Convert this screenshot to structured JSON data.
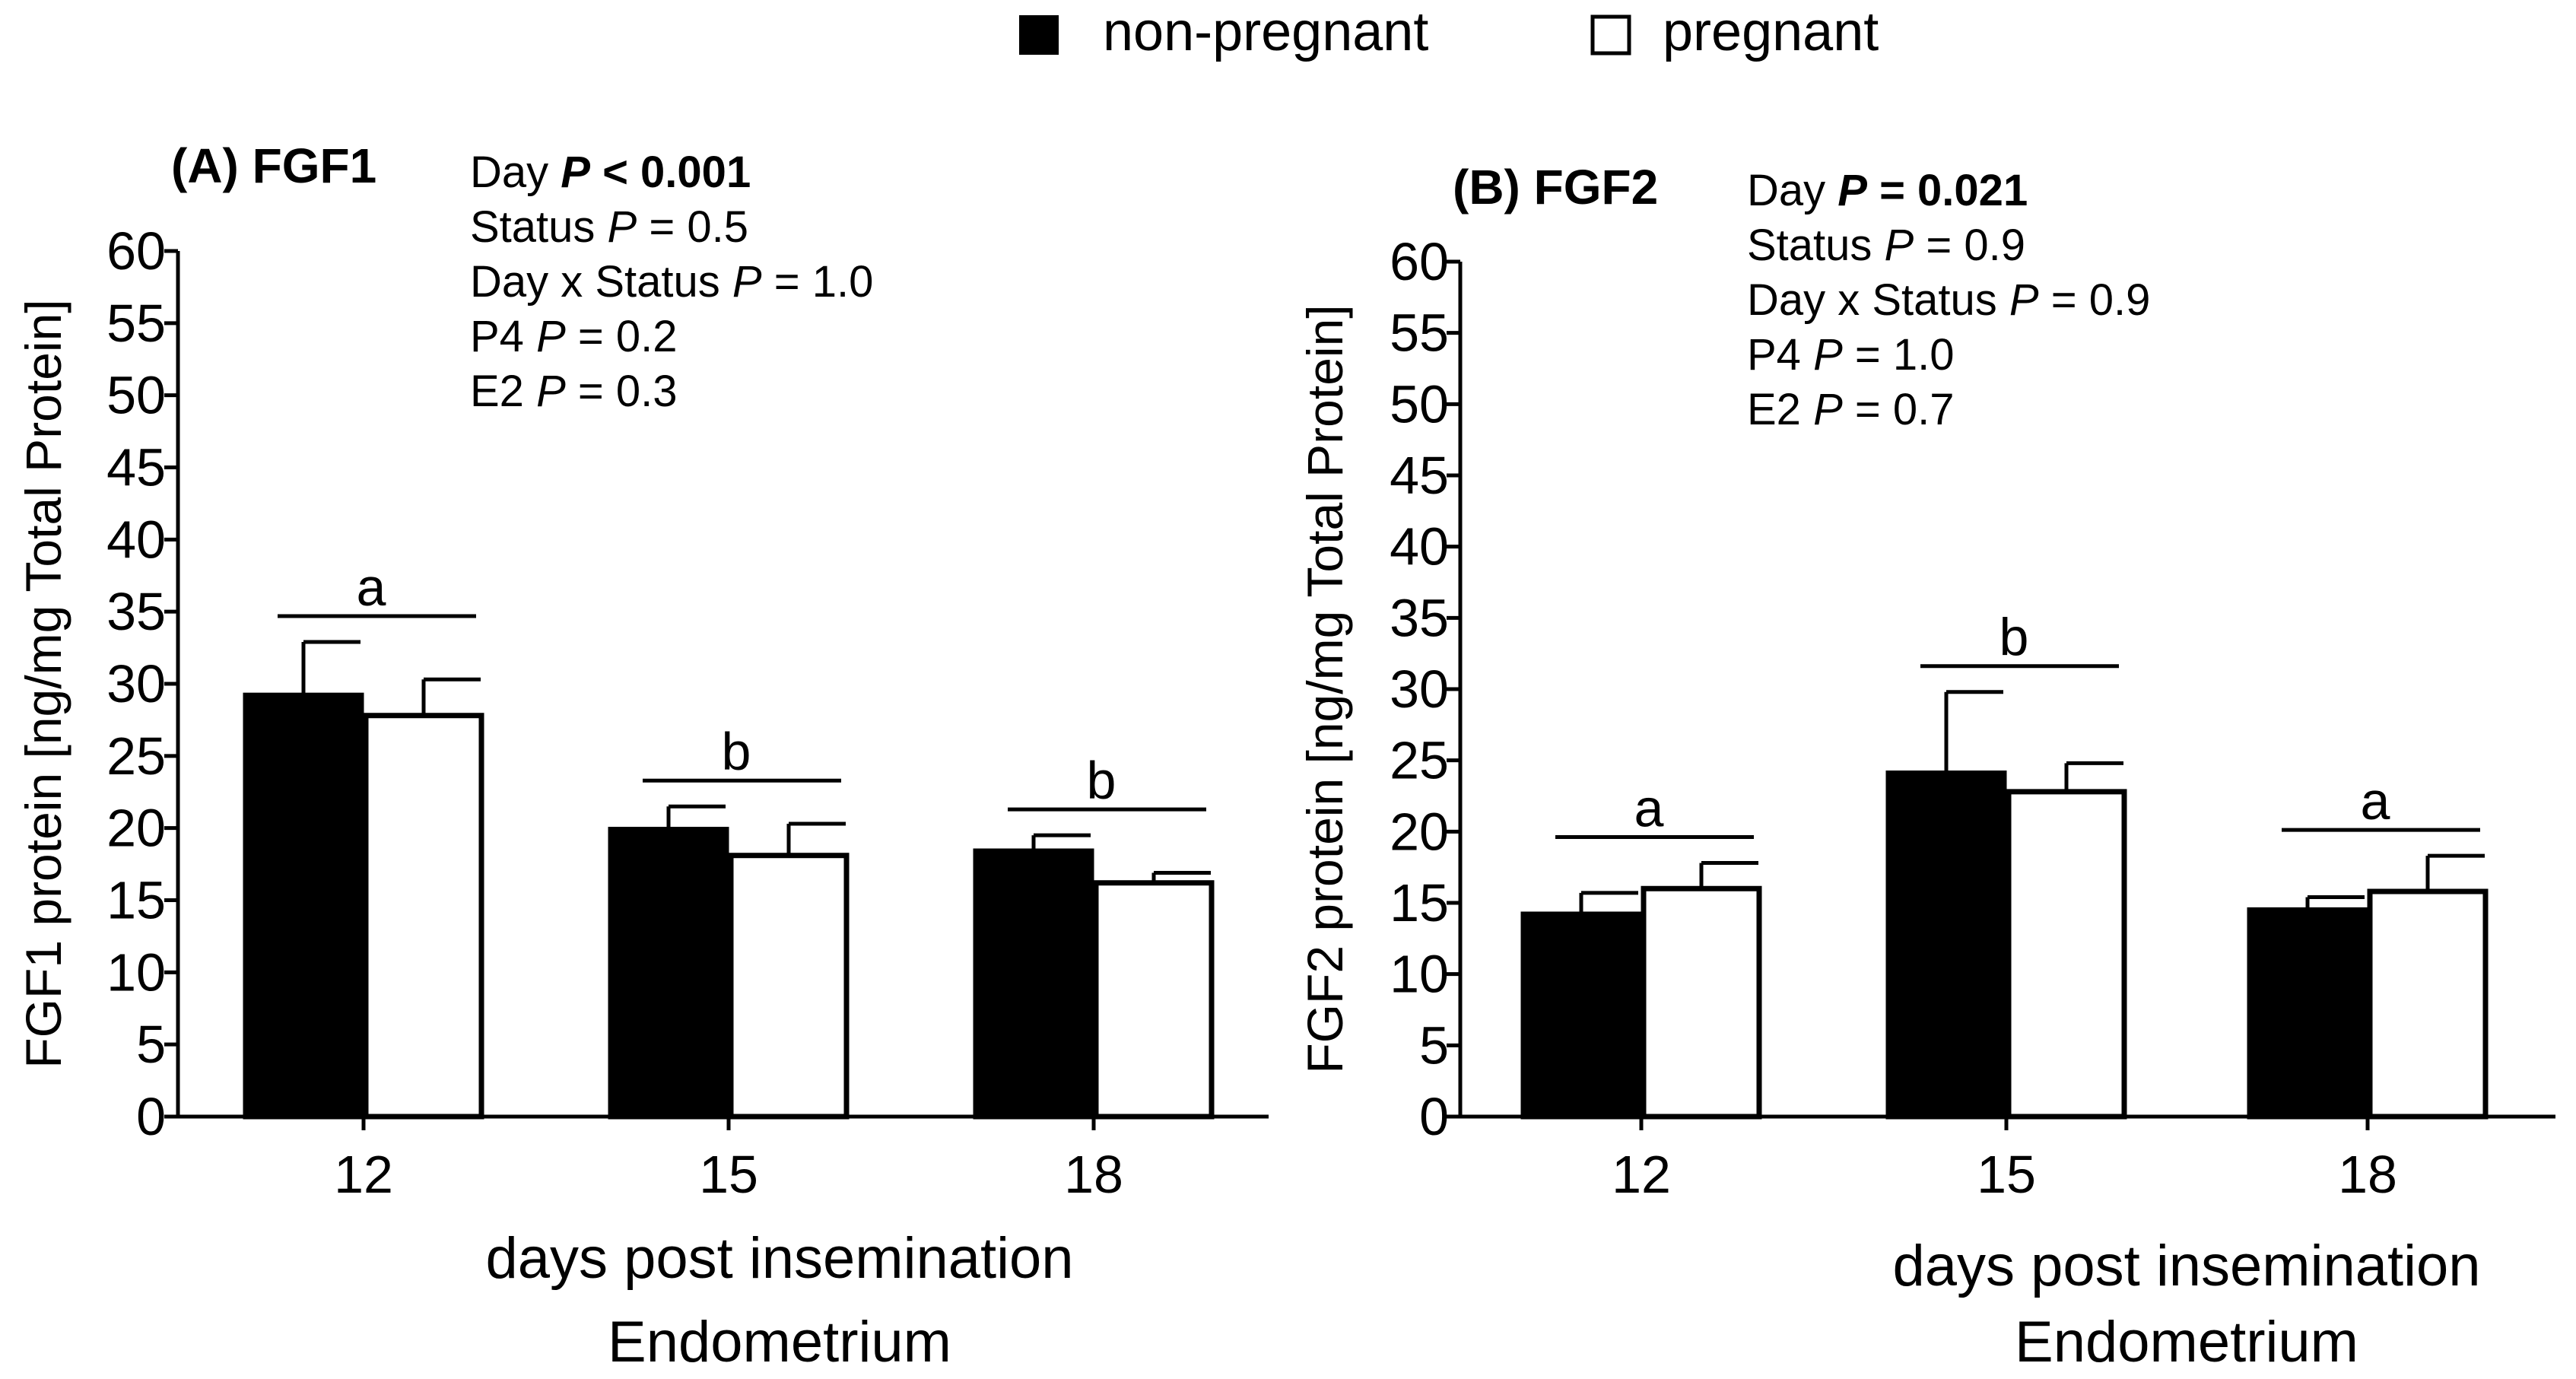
{
  "legend": {
    "items": [
      {
        "label": "non-pregnant",
        "color": "#000000"
      },
      {
        "label": "pregnant",
        "color": "#ffffff"
      }
    ]
  },
  "chart_data": [
    {
      "type": "bar",
      "panel_label": "(A) FGF1",
      "ylabel": "FGF1 protein [ng/mg Total Protein]",
      "xlabel": "days post insemination",
      "xlabel2": "Endometrium",
      "ylim": [
        0,
        60
      ],
      "yticks": [
        "0",
        "5",
        "10",
        "15",
        "20",
        "25",
        "30",
        "35",
        "40",
        "45",
        "50",
        "55",
        "60"
      ],
      "categories": [
        "12",
        "15",
        "18"
      ],
      "series": [
        {
          "name": "non-pregnant",
          "color": "#000000",
          "values": [
            29.2,
            19.9,
            18.4
          ],
          "errors": [
            3.7,
            1.6,
            1.1
          ]
        },
        {
          "name": "pregnant",
          "color": "#ffffff",
          "values": [
            27.8,
            18.1,
            16.2
          ],
          "errors": [
            2.5,
            2.2,
            0.7
          ]
        }
      ],
      "significance": [
        {
          "category": "12",
          "letter": "a"
        },
        {
          "category": "15",
          "letter": "b"
        },
        {
          "category": "18",
          "letter": "b"
        }
      ],
      "stats": [
        {
          "prefix": "Day ",
          "p": "P",
          "suffix": " < 0.001",
          "bold": true
        },
        {
          "prefix": "Status ",
          "p": "P",
          "suffix": " = 0.5",
          "bold": false
        },
        {
          "prefix": "Day x Status ",
          "p": "P",
          "suffix": " = 1.0",
          "bold": false
        },
        {
          "prefix": "P4 ",
          "p": "P",
          "suffix": " = 0.2",
          "bold": false
        },
        {
          "prefix": "E2 ",
          "p": "P",
          "suffix": " = 0.3",
          "bold": false
        }
      ]
    },
    {
      "type": "bar",
      "panel_label": "(B) FGF2",
      "ylabel": "FGF2 protein [ng/mg Total Protein]",
      "xlabel": "days post insemination",
      "xlabel2": "Endometrium",
      "ylim": [
        0,
        60
      ],
      "yticks": [
        "0",
        "5",
        "10",
        "15",
        "20",
        "25",
        "30",
        "35",
        "40",
        "45",
        "50",
        "55",
        "60"
      ],
      "categories": [
        "12",
        "15",
        "18"
      ],
      "series": [
        {
          "name": "non-pregnant",
          "color": "#000000",
          "values": [
            14.2,
            24.1,
            14.5
          ],
          "errors": [
            1.5,
            5.7,
            0.9
          ]
        },
        {
          "name": "pregnant",
          "color": "#ffffff",
          "values": [
            16.0,
            22.8,
            15.8
          ],
          "errors": [
            1.8,
            2.0,
            2.5
          ]
        }
      ],
      "significance": [
        {
          "category": "12",
          "letter": "a"
        },
        {
          "category": "15",
          "letter": "b"
        },
        {
          "category": "18",
          "letter": "a"
        }
      ],
      "stats": [
        {
          "prefix": "Day ",
          "p": "P",
          "suffix": " = 0.021",
          "bold": true
        },
        {
          "prefix": "Status ",
          "p": "P",
          "suffix": " = 0.9",
          "bold": false
        },
        {
          "prefix": "Day x Status ",
          "p": "P",
          "suffix": " = 0.9",
          "bold": false
        },
        {
          "prefix": "P4 ",
          "p": "P",
          "suffix": " = 1.0",
          "bold": false
        },
        {
          "prefix": "E2 ",
          "p": "P",
          "suffix": " = 0.7",
          "bold": false
        }
      ]
    }
  ]
}
